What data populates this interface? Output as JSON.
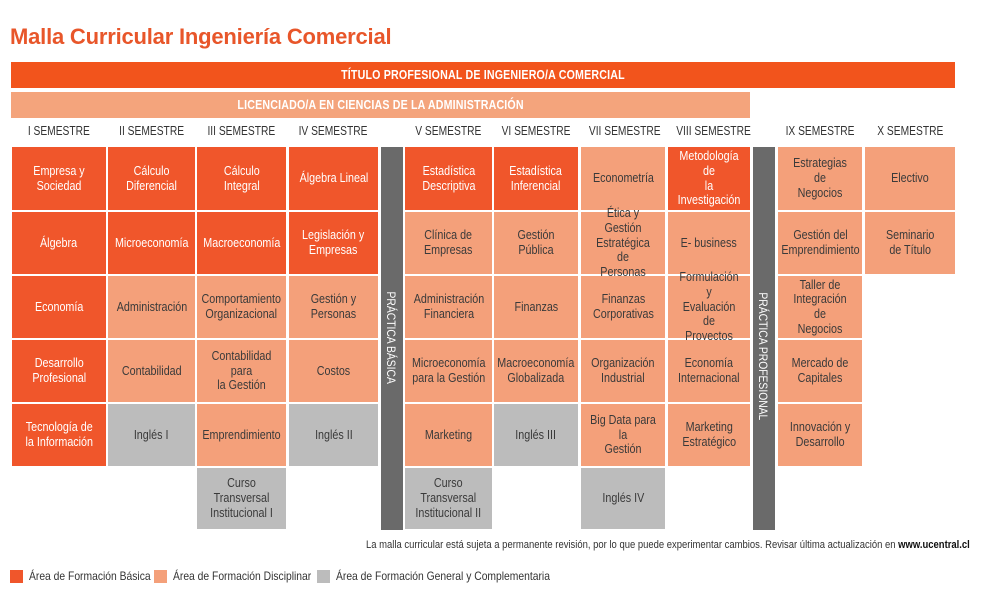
{
  "page_title": "Malla Curricular Ingeniería Comercial",
  "banners": {
    "titulo": "TÍTULO PROFESIONAL DE INGENIERO/A COMERCIAL",
    "licenciado": "LICENCIADO/A EN CIENCIAS DE LA ADMINISTRACIÓN"
  },
  "semesters": [
    "I SEMESTRE",
    "II SEMESTRE",
    "III SEMESTRE",
    "IV SEMESTRE",
    "V SEMESTRE",
    "VI SEMESTRE",
    "VII SEMESTRE",
    "VIII SEMESTRE",
    "IX SEMESTRE",
    "X SEMESTRE"
  ],
  "vertical_labels": {
    "basica": "PRÁCTICA BÁSICA",
    "profesional": "PRÁCTICA PROFESIONAL"
  },
  "courses": {
    "s1": [
      "Empresa y Sociedad",
      "Álgebra",
      "Economía",
      "Desarrollo\nProfesional",
      "Tecnología de\nla Información"
    ],
    "s2": [
      "Cálculo\nDiferencial",
      "Microeconomía",
      "Administración",
      "Contabilidad",
      "Inglés I"
    ],
    "s3": [
      "Cálculo\nIntegral",
      "Macroeconomía",
      "Comportamiento\nOrganizacional",
      "Contabilidad para\nla Gestión",
      "Emprendimiento",
      "Curso Transversal\nInstitucional I"
    ],
    "s4": [
      "Álgebra Lineal",
      "Legislación y\nEmpresas",
      "Gestión y\nPersonas",
      "Costos",
      "Inglés II"
    ],
    "s5": [
      "Estadística\nDescriptiva",
      "Clínica de\nEmpresas",
      "Administración\nFinanciera",
      "Microeconomía\npara la Gestión",
      "Marketing",
      "Curso\nTransversal\nInstitucional II"
    ],
    "s6": [
      "Estadística\nInferencial",
      "Gestión Pública",
      "Finanzas",
      "Macroeconomía\nGlobalizada",
      "Inglés III"
    ],
    "s7": [
      "Econometría",
      "Ética y Gestión\nEstratégica de\nPersonas",
      "Finanzas\nCorporativas",
      "Organización\nIndustrial",
      "Big Data para la\nGestión",
      "Inglés IV"
    ],
    "s8": [
      "Metodología de\nla Investigación",
      "E- business",
      "Formulación y\nEvaluación de\nProyectos",
      "Economía\nInternacional",
      "Marketing\nEstratégico"
    ],
    "s9": [
      "Estrategias de\nNegocios",
      "Gestión del\nEmprendimiento",
      "Taller de\nIntegración de\nNegocios",
      "Mercado de\nCapitales",
      "Innovación y\nDesarrollo"
    ],
    "s10": [
      "Electivo",
      "Seminario\nde Título"
    ]
  },
  "note": {
    "text": "La malla curricular está sujeta a permanente revisión, por lo que puede experimentar cambios. Revisar última actualización en ",
    "link": "www.ucentral.cl"
  },
  "legend": [
    {
      "label": "Área de Formación Básica",
      "color": "#f0562b"
    },
    {
      "label": "Área de Formación Disciplinar",
      "color": "#f4a07a"
    },
    {
      "label": "Área de Formación General y Complementaria",
      "color": "#bcbcbc"
    }
  ]
}
